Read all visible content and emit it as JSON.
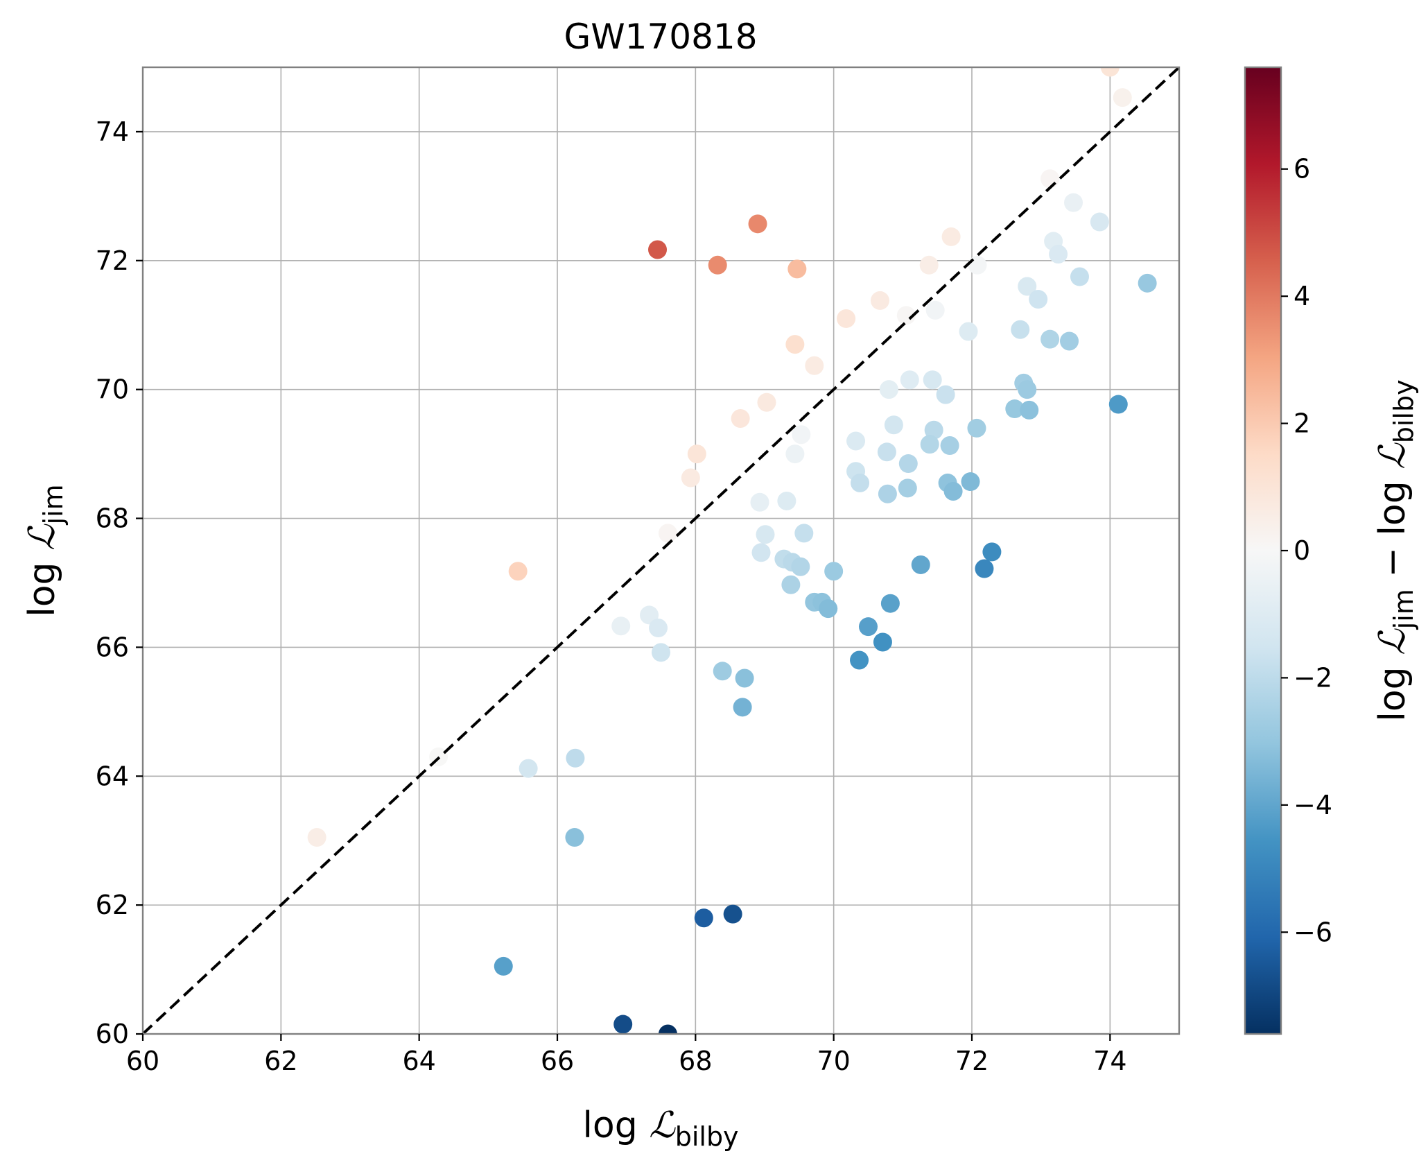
{
  "chart_data": {
    "type": "scatter",
    "title": "GW170818",
    "xlabel": {
      "prefix": "log ",
      "symbol": "ℒ",
      "sub": "bilby"
    },
    "ylabel": {
      "prefix": "log ",
      "symbol": "ℒ",
      "sub": "jim"
    },
    "colorbar_label": {
      "prefix": "log ",
      "symbol": "ℒ",
      "sub": "jim",
      "minus": " − ",
      "prefix2": "log ",
      "symbol2": "ℒ",
      "sub2": "bilby"
    },
    "xlim": [
      60,
      75
    ],
    "ylim": [
      60,
      75
    ],
    "xticks": [
      60,
      62,
      64,
      66,
      68,
      70,
      72,
      74
    ],
    "yticks": [
      60,
      62,
      64,
      66,
      68,
      70,
      72,
      74
    ],
    "xtick_labels": [
      "60",
      "62",
      "64",
      "66",
      "68",
      "70",
      "72",
      "74"
    ],
    "ytick_labels": [
      "60",
      "62",
      "64",
      "66",
      "68",
      "70",
      "72",
      "74"
    ],
    "grid": true,
    "reference_line": {
      "style": "dashed",
      "color": "#000000",
      "from": [
        60,
        60
      ],
      "to": [
        75,
        75
      ]
    },
    "colormap": "RdBu_r",
    "color_range": [
      -7.6,
      7.6
    ],
    "colorbar_ticks": [
      -6,
      -4,
      -2,
      0,
      2,
      4,
      6
    ],
    "colorbar_tick_labels": [
      "−6",
      "−4",
      "−2",
      "0",
      "2",
      "4",
      "6"
    ],
    "points": [
      {
        "x": 67.45,
        "y": 72.17
      },
      {
        "x": 68.32,
        "y": 71.93
      },
      {
        "x": 68.9,
        "y": 72.57
      },
      {
        "x": 69.47,
        "y": 71.87
      },
      {
        "x": 65.43,
        "y": 67.18
      },
      {
        "x": 69.44,
        "y": 70.7
      },
      {
        "x": 68.02,
        "y": 69.0
      },
      {
        "x": 62.52,
        "y": 63.05
      },
      {
        "x": 67.93,
        "y": 68.63
      },
      {
        "x": 68.65,
        "y": 69.55
      },
      {
        "x": 69.03,
        "y": 69.8
      },
      {
        "x": 69.72,
        "y": 70.37
      },
      {
        "x": 70.18,
        "y": 71.1
      },
      {
        "x": 70.67,
        "y": 71.38
      },
      {
        "x": 71.38,
        "y": 71.93
      },
      {
        "x": 71.7,
        "y": 72.37
      },
      {
        "x": 74.0,
        "y": 75.0
      },
      {
        "x": 74.18,
        "y": 74.53
      },
      {
        "x": 67.6,
        "y": 67.77
      },
      {
        "x": 69.53,
        "y": 69.3
      },
      {
        "x": 71.05,
        "y": 71.15
      },
      {
        "x": 73.13,
        "y": 73.27
      },
      {
        "x": 64.28,
        "y": 64.3
      },
      {
        "x": 71.47,
        "y": 71.23
      },
      {
        "x": 72.08,
        "y": 71.93
      },
      {
        "x": 71.95,
        "y": 70.9
      },
      {
        "x": 73.47,
        "y": 72.9
      },
      {
        "x": 73.18,
        "y": 72.3
      },
      {
        "x": 73.25,
        "y": 72.1
      },
      {
        "x": 73.85,
        "y": 72.6
      },
      {
        "x": 72.8,
        "y": 71.6
      },
      {
        "x": 72.96,
        "y": 71.4
      },
      {
        "x": 73.56,
        "y": 71.75
      },
      {
        "x": 72.7,
        "y": 70.93
      },
      {
        "x": 73.13,
        "y": 70.78
      },
      {
        "x": 73.41,
        "y": 70.75
      },
      {
        "x": 74.54,
        "y": 71.65
      },
      {
        "x": 74.12,
        "y": 69.77
      },
      {
        "x": 71.1,
        "y": 70.15
      },
      {
        "x": 71.43,
        "y": 70.15
      },
      {
        "x": 70.8,
        "y": 70.0
      },
      {
        "x": 71.62,
        "y": 69.92
      },
      {
        "x": 70.87,
        "y": 69.45
      },
      {
        "x": 69.44,
        "y": 69.0
      },
      {
        "x": 70.32,
        "y": 69.2
      },
      {
        "x": 70.77,
        "y": 69.03
      },
      {
        "x": 71.08,
        "y": 68.85
      },
      {
        "x": 71.45,
        "y": 69.37
      },
      {
        "x": 71.39,
        "y": 69.15
      },
      {
        "x": 71.68,
        "y": 69.13
      },
      {
        "x": 72.07,
        "y": 69.4
      },
      {
        "x": 72.62,
        "y": 69.7
      },
      {
        "x": 72.75,
        "y": 70.1
      },
      {
        "x": 72.8,
        "y": 70.0
      },
      {
        "x": 72.83,
        "y": 69.68
      },
      {
        "x": 70.32,
        "y": 68.73
      },
      {
        "x": 70.38,
        "y": 68.55
      },
      {
        "x": 70.78,
        "y": 68.38
      },
      {
        "x": 71.07,
        "y": 68.47
      },
      {
        "x": 71.65,
        "y": 68.55
      },
      {
        "x": 71.73,
        "y": 68.42
      },
      {
        "x": 71.98,
        "y": 68.57
      },
      {
        "x": 68.93,
        "y": 68.25
      },
      {
        "x": 69.32,
        "y": 68.27
      },
      {
        "x": 69.01,
        "y": 67.75
      },
      {
        "x": 69.57,
        "y": 67.77
      },
      {
        "x": 68.95,
        "y": 67.47
      },
      {
        "x": 69.28,
        "y": 67.37
      },
      {
        "x": 69.4,
        "y": 67.32
      },
      {
        "x": 69.52,
        "y": 67.25
      },
      {
        "x": 70.0,
        "y": 67.18
      },
      {
        "x": 69.38,
        "y": 66.97
      },
      {
        "x": 69.72,
        "y": 66.7
      },
      {
        "x": 69.83,
        "y": 66.7
      },
      {
        "x": 69.92,
        "y": 66.6
      },
      {
        "x": 71.26,
        "y": 67.28
      },
      {
        "x": 72.29,
        "y": 67.48
      },
      {
        "x": 72.18,
        "y": 67.22
      },
      {
        "x": 70.82,
        "y": 66.68
      },
      {
        "x": 70.5,
        "y": 66.32
      },
      {
        "x": 70.71,
        "y": 66.08
      },
      {
        "x": 70.37,
        "y": 65.8
      },
      {
        "x": 67.33,
        "y": 66.5
      },
      {
        "x": 67.46,
        "y": 66.3
      },
      {
        "x": 66.92,
        "y": 66.33
      },
      {
        "x": 67.5,
        "y": 65.92
      },
      {
        "x": 68.39,
        "y": 65.63
      },
      {
        "x": 68.71,
        "y": 65.52
      },
      {
        "x": 68.68,
        "y": 65.07
      },
      {
        "x": 65.58,
        "y": 64.12
      },
      {
        "x": 66.26,
        "y": 64.28
      },
      {
        "x": 66.25,
        "y": 63.05
      },
      {
        "x": 68.12,
        "y": 61.8
      },
      {
        "x": 68.54,
        "y": 61.86
      },
      {
        "x": 65.22,
        "y": 61.05
      },
      {
        "x": 66.95,
        "y": 60.15
      },
      {
        "x": 67.6,
        "y": 60.0
      }
    ]
  }
}
